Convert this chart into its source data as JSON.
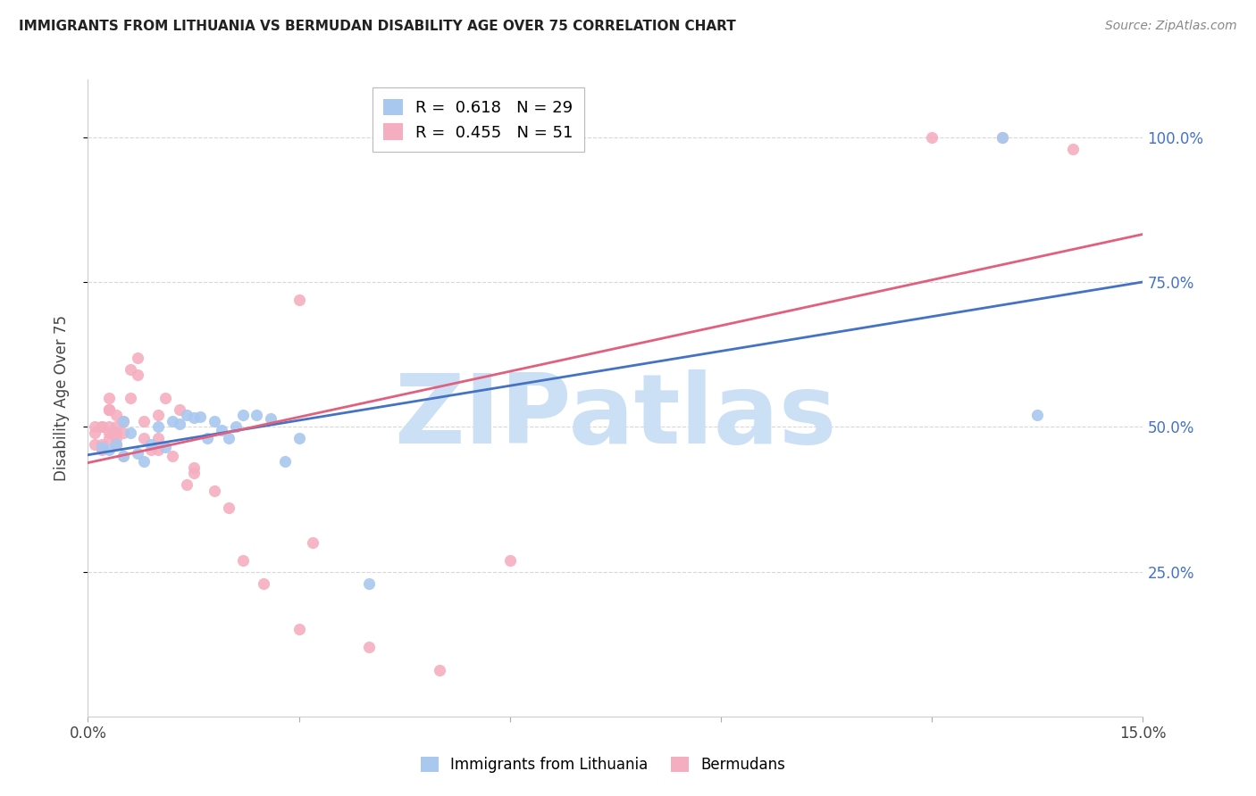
{
  "title": "IMMIGRANTS FROM LITHUANIA VS BERMUDAN DISABILITY AGE OVER 75 CORRELATION CHART",
  "source": "Source: ZipAtlas.com",
  "ylabel": "Disability Age Over 75",
  "legend1_label": "Immigrants from Lithuania",
  "legend2_label": "Bermudans",
  "legend1_R": "R =  0.618",
  "legend1_N": "N = 29",
  "legend2_R": "R =  0.455",
  "legend2_N": "N = 51",
  "blue_color": "#a8c8f0",
  "pink_color": "#f5aec0",
  "blue_line_color": "#4472c4",
  "pink_line_color": "#e0607e",
  "watermark_color": "#cce0f5",
  "grid_color": "#d8d8d8",
  "xlim": [
    0.0,
    0.15
  ],
  "ylim": [
    0.0,
    1.1
  ],
  "blue_scatter_x": [
    0.002,
    0.003,
    0.004,
    0.005,
    0.005,
    0.006,
    0.007,
    0.008,
    0.009,
    0.01,
    0.011,
    0.012,
    0.013,
    0.014,
    0.015,
    0.016,
    0.017,
    0.018,
    0.019,
    0.02,
    0.021,
    0.022,
    0.024,
    0.026,
    0.028,
    0.03,
    0.04,
    0.13,
    0.135
  ],
  "blue_scatter_y": [
    0.465,
    0.46,
    0.47,
    0.51,
    0.45,
    0.49,
    0.455,
    0.44,
    0.47,
    0.5,
    0.465,
    0.51,
    0.505,
    0.52,
    0.516,
    0.518,
    0.48,
    0.51,
    0.495,
    0.48,
    0.5,
    0.52,
    0.52,
    0.515,
    0.44,
    0.48,
    0.23,
    1.0,
    0.52
  ],
  "pink_scatter_x": [
    0.001,
    0.001,
    0.001,
    0.002,
    0.002,
    0.002,
    0.002,
    0.003,
    0.003,
    0.003,
    0.003,
    0.003,
    0.003,
    0.003,
    0.004,
    0.004,
    0.004,
    0.004,
    0.004,
    0.005,
    0.005,
    0.005,
    0.006,
    0.006,
    0.007,
    0.007,
    0.008,
    0.008,
    0.009,
    0.01,
    0.01,
    0.01,
    0.011,
    0.012,
    0.013,
    0.014,
    0.015,
    0.015,
    0.018,
    0.02,
    0.022,
    0.025,
    0.03,
    0.03,
    0.032,
    0.04,
    0.05,
    0.06,
    0.12,
    0.13,
    0.14
  ],
  "pink_scatter_y": [
    0.47,
    0.49,
    0.5,
    0.47,
    0.5,
    0.5,
    0.46,
    0.53,
    0.49,
    0.53,
    0.55,
    0.5,
    0.53,
    0.48,
    0.5,
    0.49,
    0.48,
    0.52,
    0.47,
    0.45,
    0.49,
    0.51,
    0.6,
    0.55,
    0.62,
    0.59,
    0.51,
    0.48,
    0.46,
    0.48,
    0.46,
    0.52,
    0.55,
    0.45,
    0.53,
    0.4,
    0.43,
    0.42,
    0.39,
    0.36,
    0.27,
    0.23,
    0.72,
    0.15,
    0.3,
    0.12,
    0.08,
    0.27,
    1.0,
    1.0,
    0.98
  ]
}
